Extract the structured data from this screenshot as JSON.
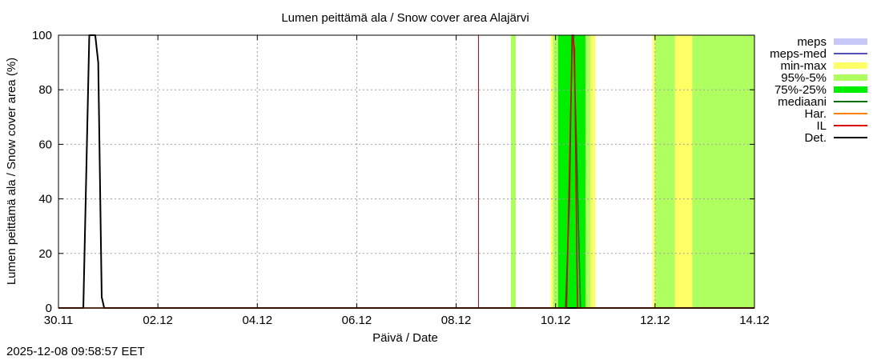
{
  "chart_data": {
    "type": "area",
    "title": "Lumen peittämä ala / Snow cover area Alajärvi",
    "xlabel": "Päivä / Date",
    "ylabel": "Lumen peittämä ala / Snow cover area (%)",
    "ylim": [
      0,
      100
    ],
    "xlim": [
      "2025-11-30",
      "2025-12-14"
    ],
    "x_ticks": [
      "30.11",
      "02.12",
      "04.12",
      "06.12",
      "08.12",
      "10.12",
      "12.12",
      "14.12"
    ],
    "y_ticks": [
      "0",
      "20",
      "40",
      "60",
      "80",
      "100"
    ],
    "grid": true,
    "legend_position": "right",
    "legend": [
      {
        "label": "meps",
        "color": "#c8c8f8",
        "style": "fill"
      },
      {
        "label": "meps-med",
        "color": "#5050b8",
        "style": "line"
      },
      {
        "label": "min-max",
        "color": "#ffff66",
        "style": "fill"
      },
      {
        "label": "95%-5%",
        "color": "#b0ff60",
        "style": "fill"
      },
      {
        "label": "75%-25%",
        "color": "#00ee00",
        "style": "fill"
      },
      {
        "label": "mediaani",
        "color": "#007000",
        "style": "line"
      },
      {
        "label": "Har.",
        "color": "#ff8000",
        "style": "line"
      },
      {
        "label": "IL",
        "color": "#dd0000",
        "style": "line"
      },
      {
        "label": "Det.",
        "color": "#000000",
        "style": "line"
      }
    ],
    "vertical_marker_day": 8.45,
    "minmax_bands": [
      [
        9.9,
        10.8,
        100
      ],
      [
        11.95,
        13.0,
        100
      ]
    ],
    "p95_5_bands": [
      [
        9.1,
        9.2,
        100
      ],
      [
        9.95,
        10.7,
        100
      ],
      [
        12.0,
        12.4,
        100
      ],
      [
        12.75,
        14.0,
        100
      ]
    ],
    "p75_25_bands": [
      [
        10.05,
        10.6,
        100
      ]
    ],
    "series": [
      {
        "name": "Det.",
        "color": "#000000",
        "x": [
          0,
          0.5,
          0.62,
          0.7,
          0.74,
          0.8,
          0.87,
          0.92,
          14
        ],
        "y": [
          0,
          0,
          100,
          100,
          100,
          90,
          4,
          0,
          0
        ]
      },
      {
        "name": "mediaani",
        "color": "#007000",
        "x": [
          0,
          10.2,
          10.28,
          10.33,
          10.36,
          10.42,
          10.5,
          14
        ],
        "y": [
          0,
          0,
          40,
          100,
          100,
          60,
          0,
          0
        ]
      },
      {
        "name": "IL",
        "color": "#dd0000",
        "x": [
          0,
          10.22,
          10.3,
          10.34,
          10.38,
          10.44,
          14
        ],
        "y": [
          0,
          0,
          70,
          100,
          95,
          0,
          0
        ]
      }
    ]
  },
  "footer": {
    "timestamp": "2025-12-08 09:58:57 EET"
  }
}
